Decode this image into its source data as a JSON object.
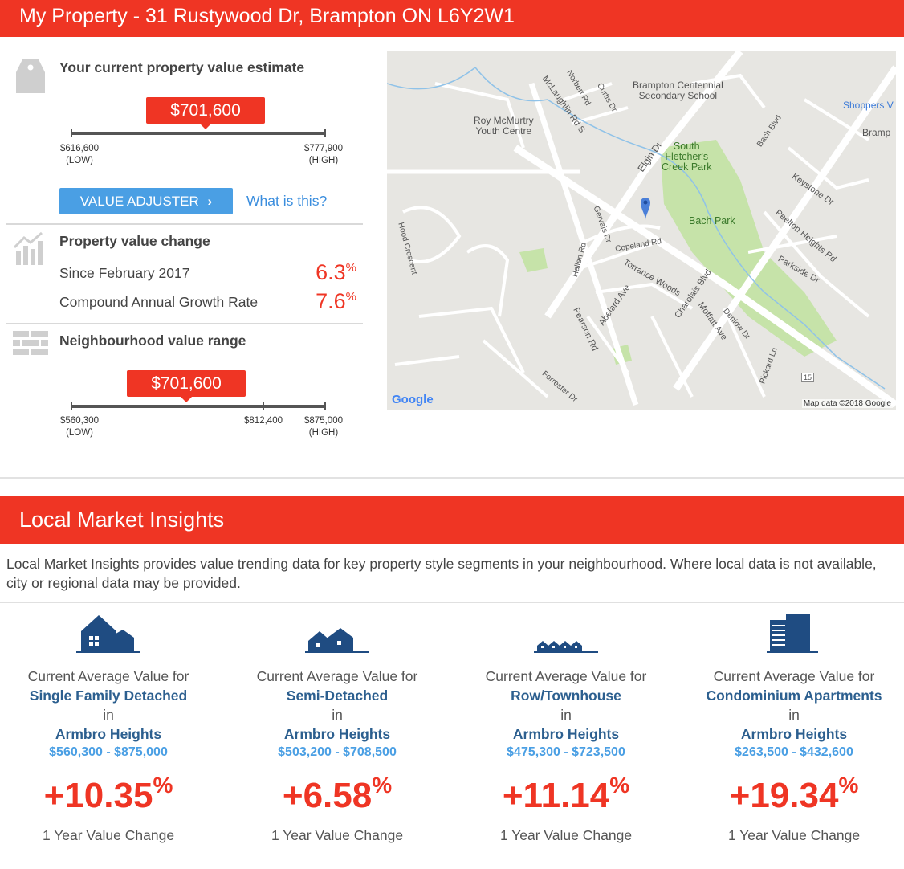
{
  "header": {
    "title": "My Property - 31 Rustywood Dr, Brampton ON L6Y2W1"
  },
  "estimate": {
    "title": "Your current property value estimate",
    "value": "$701,600",
    "low": "$616,600",
    "high": "$777,900",
    "low_label": "(LOW)",
    "high_label": "(HIGH)",
    "adjuster_label": "VALUE ADJUSTER",
    "what_is_this": "What is this?"
  },
  "value_change": {
    "title": "Property value change",
    "rows": [
      {
        "label": "Since February 2017",
        "value": "6.3",
        "unit": "%"
      },
      {
        "label": "Compound Annual Growth Rate",
        "value": "7.6",
        "unit": "%"
      }
    ]
  },
  "neighbourhood": {
    "title": "Neighbourhood value range",
    "value": "$701,600",
    "low": "$560,300",
    "mid": "$812,400",
    "high": "$875,000",
    "low_label": "(LOW)",
    "high_label": "(HIGH)"
  },
  "map": {
    "labels": {
      "school": "Brampton Centennial\nSecondary School",
      "youth": "Roy McMurtry\nYouth Centre",
      "park1": "South\nFletcher's\nCreek Park",
      "park2": "Bach Park",
      "shoppers": "Shoppers V",
      "bramp": "Bramp",
      "elgin": "Elgin Dr",
      "copeland": "Copeland Rd",
      "torrance": "Torrance Woods",
      "charolais": "Charolais Blvd",
      "moffatt": "Moffatt Ave",
      "pearson": "Pearson Rd",
      "abelard": "Abelard Ave",
      "peelton": "Peelton Heights Rd",
      "parkside": "Parkside Dr",
      "keystone": "Keystone Dr",
      "mclaughlin": "McLaughlin Rd S",
      "norbert": "Norbert Rd",
      "curtis": "Curtis Dr",
      "hood": "Hood Crescent",
      "gervais": "Gervais Dr",
      "hallen": "Hallen Rd",
      "bach_blvd": "Bach Blvd",
      "denlow": "Denlow Dr",
      "pickard": "Pickard Ln",
      "forrester": "Forrester Dr",
      "route": "15"
    },
    "google": "Google",
    "attribution": "Map data ©2018 Google"
  },
  "insights": {
    "title": "Local Market Insights",
    "intro": "Local Market Insights provides value trending data for key property style segments in your neighbourhood. Where local data is not available, city or regional data may be provided.",
    "cards": [
      {
        "icon": "detached-house-icon",
        "prefix": "Current Average Value for",
        "type": "Single Family Detached",
        "in": "in",
        "area": "Armbro Heights",
        "range": "$560,300 - $875,000",
        "change": "+10.35",
        "unit": "%",
        "foot": "1 Year Value Change"
      },
      {
        "icon": "semi-detached-icon",
        "prefix": "Current Average Value for",
        "type": "Semi-Detached",
        "in": "in",
        "area": "Armbro Heights",
        "range": "$503,200 - $708,500",
        "change": "+6.58",
        "unit": "%",
        "foot": "1 Year Value Change"
      },
      {
        "icon": "townhouse-icon",
        "prefix": "Current Average Value for",
        "type": "Row/Townhouse",
        "in": "in",
        "area": "Armbro Heights",
        "range": "$475,300 - $723,500",
        "change": "+11.14",
        "unit": "%",
        "foot": "1 Year Value Change"
      },
      {
        "icon": "condo-building-icon",
        "prefix": "Current Average Value for",
        "type": "Condominium Apartments",
        "in": "in",
        "area": "Armbro Heights",
        "range": "$263,500 - $432,600",
        "change": "+19.34",
        "unit": "%",
        "foot": "1 Year Value Change"
      }
    ]
  },
  "colors": {
    "accent": "#ef3524",
    "button": "#4a9fe4",
    "link_blue": "#2c5f8f"
  }
}
